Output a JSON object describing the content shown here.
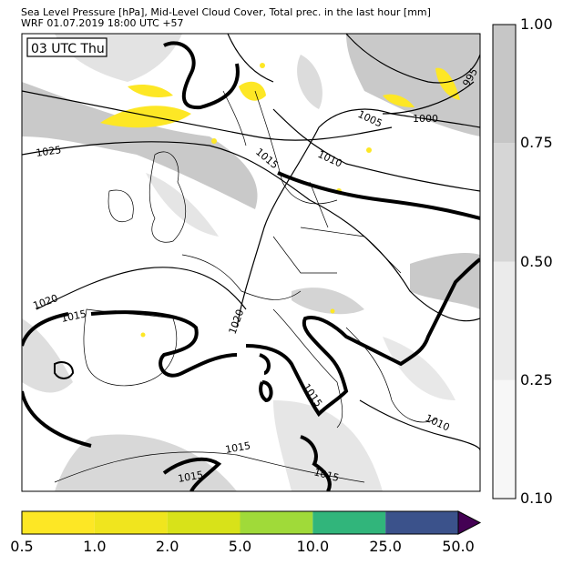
{
  "title_line1": "Sea Level Pressure [hPa], Mid-Level Cloud Cover, Total prec. in the last hour [mm]",
  "title_line2": "WRF 01.07.2019 18:00 UTC +57",
  "time_label": "03 UTC Thu",
  "isobar_labels": [
    "1025",
    "1020",
    "1015",
    "1020",
    "1015",
    "1010",
    "1005",
    "1000",
    "995",
    "1015",
    "1015",
    "1015",
    "1015",
    "1010"
  ],
  "cloud_colorbar": {
    "ticks": [
      "1.00",
      "0.75",
      "0.50",
      "0.25",
      "0.10"
    ],
    "colors": [
      "#f7f7f7",
      "#ebebeb",
      "#d6d6d6",
      "#c6c6c6"
    ]
  },
  "precip_colorbar": {
    "ticks": [
      "0.5",
      "1.0",
      "2.0",
      "5.0",
      "10.0",
      "25.0",
      "50.0"
    ],
    "colors": [
      "#fde725",
      "#f0e51e",
      "#d8e219",
      "#a0da39",
      "#31b57b",
      "#3b528b",
      "#440154"
    ]
  }
}
